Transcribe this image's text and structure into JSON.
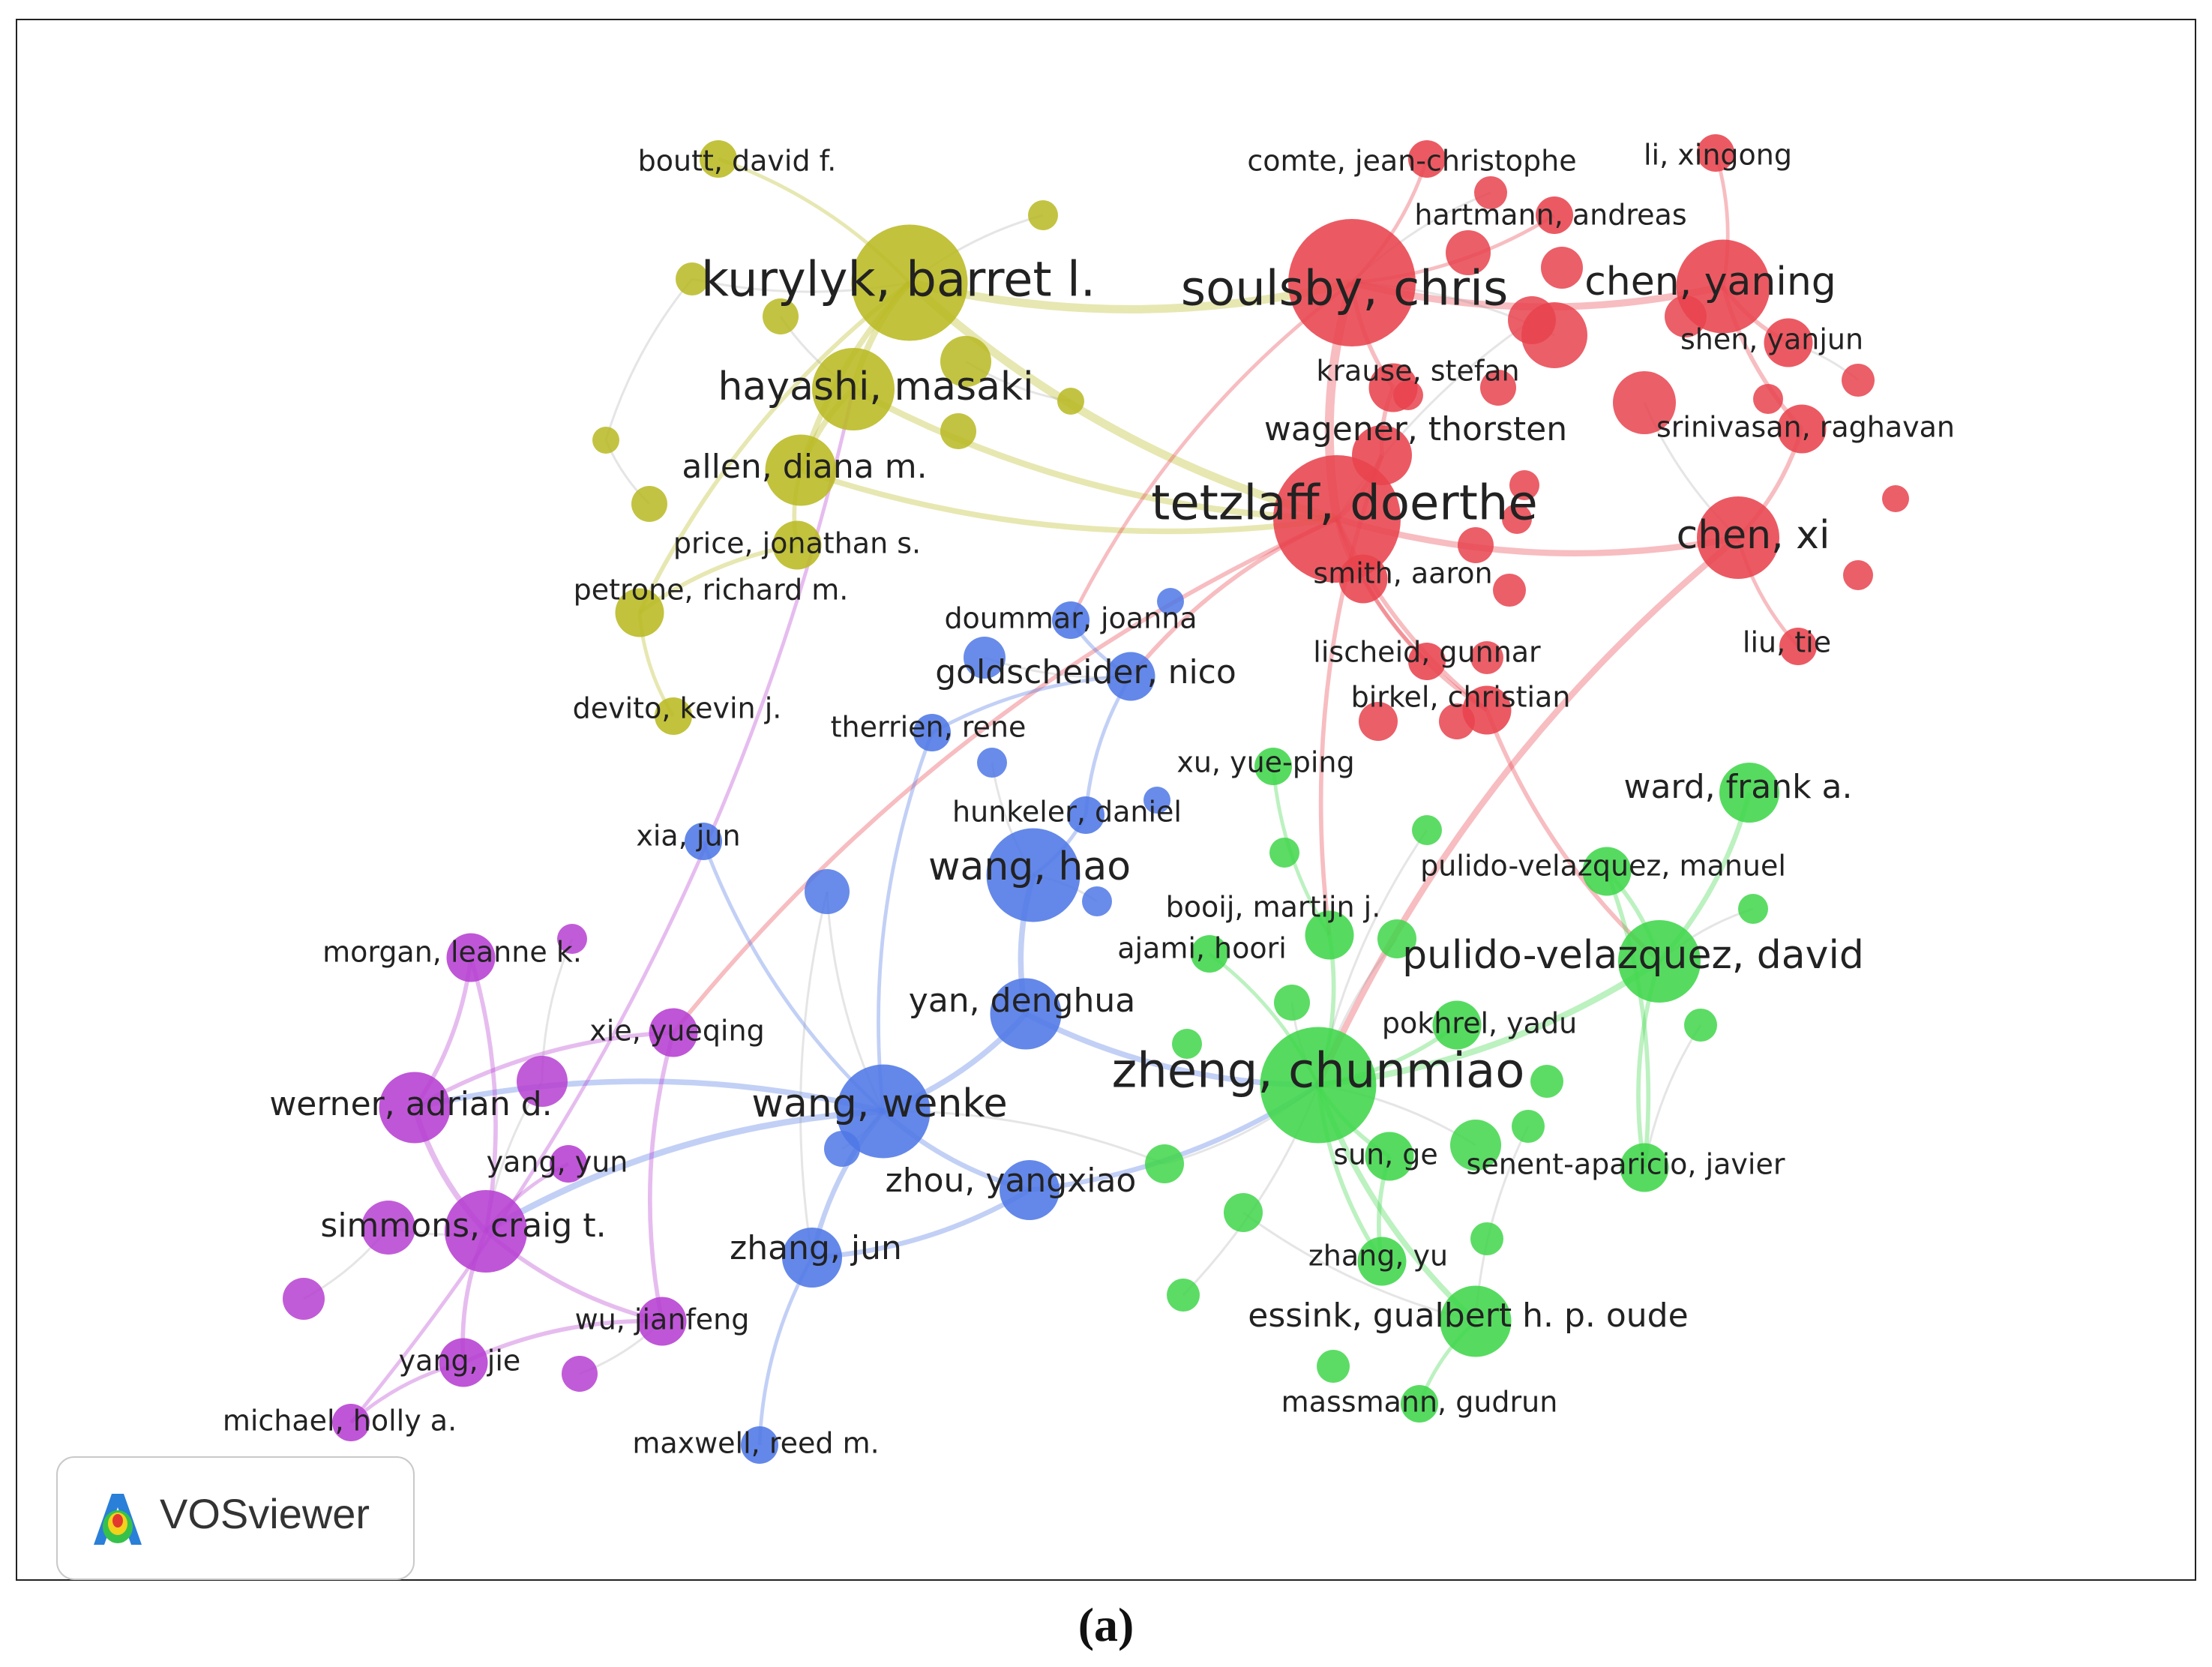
{
  "figure": {
    "caption": "(a)"
  },
  "legend": {
    "software": "VOSviewer"
  },
  "clusters": {
    "red": "#e8434d",
    "yellow": "#b9b922",
    "blue": "#4f78e6",
    "green": "#3fd64a",
    "purple": "#b63fd1"
  },
  "nodes": [
    {
      "id": "kurylyk",
      "label": "kurylyk, barret l.",
      "cluster": "yellow",
      "weight": 9,
      "label_size": "xl"
    },
    {
      "id": "hayashi",
      "label": "hayashi, masaki",
      "cluster": "yellow",
      "weight": 6,
      "label_size": "l"
    },
    {
      "id": "allen",
      "label": "allen, diana m.",
      "cluster": "yellow",
      "weight": 5,
      "label_size": "m"
    },
    {
      "id": "price",
      "label": "price, jonathan s.",
      "cluster": "yellow",
      "weight": 3,
      "label_size": "s"
    },
    {
      "id": "petrone",
      "label": "petrone, richard m.",
      "cluster": "yellow",
      "weight": 3,
      "label_size": "s"
    },
    {
      "id": "devito",
      "label": "devito, kevin j.",
      "cluster": "yellow",
      "weight": 2,
      "label_size": "s"
    },
    {
      "id": "boutt",
      "label": "boutt, david f.",
      "cluster": "yellow",
      "weight": 2,
      "label_size": "s"
    },
    {
      "id": "soulsby",
      "label": "soulsby, chris",
      "cluster": "red",
      "weight": 10,
      "label_size": "xl"
    },
    {
      "id": "tetzlaff",
      "label": "tetzlaff, doerthe",
      "cluster": "red",
      "weight": 10,
      "label_size": "xl"
    },
    {
      "id": "chen_yaning",
      "label": "chen, yaning",
      "cluster": "red",
      "weight": 7,
      "label_size": "l"
    },
    {
      "id": "chen_xi",
      "label": "chen, xi",
      "cluster": "red",
      "weight": 6,
      "label_size": "l"
    },
    {
      "id": "comte",
      "label": "comte, jean-christophe",
      "cluster": "red",
      "weight": 2,
      "label_size": "s"
    },
    {
      "id": "li_xingong",
      "label": "li, xingong",
      "cluster": "red",
      "weight": 2,
      "label_size": "s"
    },
    {
      "id": "hartmann",
      "label": "hartmann, andreas",
      "cluster": "red",
      "weight": 2,
      "label_size": "s"
    },
    {
      "id": "shen",
      "label": "shen, yanjun",
      "cluster": "red",
      "weight": 3,
      "label_size": "s"
    },
    {
      "id": "krause",
      "label": "krause, stefan",
      "cluster": "red",
      "weight": 3,
      "label_size": "s"
    },
    {
      "id": "wagener",
      "label": "wagener, thorsten",
      "cluster": "red",
      "weight": 4,
      "label_size": "m"
    },
    {
      "id": "srinivasan",
      "label": "srinivasan, raghavan",
      "cluster": "red",
      "weight": 3,
      "label_size": "s"
    },
    {
      "id": "smith",
      "label": "smith, aaron",
      "cluster": "red",
      "weight": 3,
      "label_size": "s"
    },
    {
      "id": "lischeid",
      "label": "lischeid, gunnar",
      "cluster": "red",
      "weight": 2,
      "label_size": "s"
    },
    {
      "id": "birkel",
      "label": "birkel, christian",
      "cluster": "red",
      "weight": 3,
      "label_size": "s"
    },
    {
      "id": "liu",
      "label": "liu, tie",
      "cluster": "red",
      "weight": 2,
      "label_size": "s"
    },
    {
      "id": "doummar",
      "label": "doummar, joanna",
      "cluster": "blue",
      "weight": 2,
      "label_size": "s"
    },
    {
      "id": "goldscheider",
      "label": "goldscheider, nico",
      "cluster": "blue",
      "weight": 3,
      "label_size": "m"
    },
    {
      "id": "therrien",
      "label": "therrien, rene",
      "cluster": "blue",
      "weight": 2,
      "label_size": "s"
    },
    {
      "id": "hunkeler",
      "label": "hunkeler, daniel",
      "cluster": "blue",
      "weight": 2,
      "label_size": "s"
    },
    {
      "id": "xia",
      "label": "xia, jun",
      "cluster": "blue",
      "weight": 2,
      "label_size": "s"
    },
    {
      "id": "wang_hao",
      "label": "wang, hao",
      "cluster": "blue",
      "weight": 7,
      "label_size": "l"
    },
    {
      "id": "yan",
      "label": "yan, denghua",
      "cluster": "blue",
      "weight": 5,
      "label_size": "m"
    },
    {
      "id": "wang_wenke",
      "label": "wang, wenke",
      "cluster": "blue",
      "weight": 7,
      "label_size": "l"
    },
    {
      "id": "zhou",
      "label": "zhou, yangxiao",
      "cluster": "blue",
      "weight": 4,
      "label_size": "m"
    },
    {
      "id": "zhang_jun",
      "label": "zhang, jun",
      "cluster": "blue",
      "weight": 4,
      "label_size": "m"
    },
    {
      "id": "maxwell",
      "label": "maxwell, reed m.",
      "cluster": "blue",
      "weight": 2,
      "label_size": "s"
    },
    {
      "id": "xu",
      "label": "xu, yue-ping",
      "cluster": "green",
      "weight": 2,
      "label_size": "s"
    },
    {
      "id": "ward",
      "label": "ward, frank a.",
      "cluster": "green",
      "weight": 4,
      "label_size": "m"
    },
    {
      "id": "pulido_manuel",
      "label": "pulido-velazquez, manuel",
      "cluster": "green",
      "weight": 3,
      "label_size": "s"
    },
    {
      "id": "booij",
      "label": "booij, martijn j.",
      "cluster": "green",
      "weight": 3,
      "label_size": "s"
    },
    {
      "id": "ajami",
      "label": "ajami, hoori",
      "cluster": "green",
      "weight": 2,
      "label_size": "s"
    },
    {
      "id": "pulido_david",
      "label": "pulido-velazquez, david",
      "cluster": "green",
      "weight": 6,
      "label_size": "l"
    },
    {
      "id": "pokhrel",
      "label": "pokhrel, yadu",
      "cluster": "green",
      "weight": 3,
      "label_size": "s"
    },
    {
      "id": "zheng",
      "label": "zheng, chunmiao",
      "cluster": "green",
      "weight": 9,
      "label_size": "xl"
    },
    {
      "id": "sun",
      "label": "sun, ge",
      "cluster": "green",
      "weight": 3,
      "label_size": "s"
    },
    {
      "id": "senent",
      "label": "senent-aparicio, javier",
      "cluster": "green",
      "weight": 3,
      "label_size": "s"
    },
    {
      "id": "zhang_yu",
      "label": "zhang, yu",
      "cluster": "green",
      "weight": 3,
      "label_size": "s"
    },
    {
      "id": "essink",
      "label": "essink, gualbert h. p. oude",
      "cluster": "green",
      "weight": 5,
      "label_size": "m"
    },
    {
      "id": "massmann",
      "label": "massmann, gudrun",
      "cluster": "green",
      "weight": 2,
      "label_size": "s"
    },
    {
      "id": "morgan",
      "label": "morgan, leanne k.",
      "cluster": "purple",
      "weight": 3,
      "label_size": "s"
    },
    {
      "id": "xie",
      "label": "xie, yueqing",
      "cluster": "purple",
      "weight": 3,
      "label_size": "s"
    },
    {
      "id": "werner",
      "label": "werner, adrian d.",
      "cluster": "purple",
      "weight": 5,
      "label_size": "m"
    },
    {
      "id": "yang_yun",
      "label": "yang, yun",
      "cluster": "purple",
      "weight": 2,
      "label_size": "s"
    },
    {
      "id": "simmons",
      "label": "simmons, craig t.",
      "cluster": "purple",
      "weight": 6,
      "label_size": "m"
    },
    {
      "id": "wu",
      "label": "wu, jianfeng",
      "cluster": "purple",
      "weight": 3,
      "label_size": "s"
    },
    {
      "id": "yang_jie",
      "label": "yang, jie",
      "cluster": "purple",
      "weight": 3,
      "label_size": "s"
    },
    {
      "id": "michael",
      "label": "michael, holly a.",
      "cluster": "purple",
      "weight": 2,
      "label_size": "s"
    }
  ],
  "links": [
    [
      "kurylyk",
      "hayashi"
    ],
    [
      "kurylyk",
      "allen"
    ],
    [
      "kurylyk",
      "boutt"
    ],
    [
      "hayashi",
      "allen"
    ],
    [
      "allen",
      "price"
    ],
    [
      "price",
      "petrone"
    ],
    [
      "petrone",
      "devito"
    ],
    [
      "kurylyk",
      "petrone"
    ],
    [
      "kurylyk",
      "soulsby"
    ],
    [
      "hayashi",
      "tetzlaff"
    ],
    [
      "allen",
      "tetzlaff"
    ],
    [
      "kurylyk",
      "tetzlaff"
    ],
    [
      "soulsby",
      "tetzlaff"
    ],
    [
      "soulsby",
      "krause"
    ],
    [
      "soulsby",
      "comte"
    ],
    [
      "soulsby",
      "hartmann"
    ],
    [
      "tetzlaff",
      "wagener"
    ],
    [
      "tetzlaff",
      "smith"
    ],
    [
      "tetzlaff",
      "birkel"
    ],
    [
      "tetzlaff",
      "lischeid"
    ],
    [
      "tetzlaff",
      "chen_xi"
    ],
    [
      "chen_yaning",
      "shen"
    ],
    [
      "chen_yaning",
      "li_xingong"
    ],
    [
      "chen_yaning",
      "srinivasan"
    ],
    [
      "chen_xi",
      "srinivasan"
    ],
    [
      "chen_xi",
      "liu"
    ],
    [
      "soulsby",
      "chen_yaning"
    ],
    [
      "krause",
      "wagener"
    ],
    [
      "smith",
      "birkel"
    ],
    [
      "tetzlaff",
      "goldscheider"
    ],
    [
      "soulsby",
      "doummar"
    ],
    [
      "tetzlaff",
      "xie"
    ],
    [
      "chen_xi",
      "zheng"
    ],
    [
      "birkel",
      "pulido_david"
    ],
    [
      "wagener",
      "booij"
    ],
    [
      "wang_hao",
      "yan"
    ],
    [
      "wang_hao",
      "hunkeler"
    ],
    [
      "wang_wenke",
      "zhou"
    ],
    [
      "wang_wenke",
      "zhang_jun"
    ],
    [
      "wang_wenke",
      "yan"
    ],
    [
      "goldscheider",
      "hunkeler"
    ],
    [
      "goldscheider",
      "therrien"
    ],
    [
      "doummar",
      "goldscheider"
    ],
    [
      "xia",
      "wang_wenke"
    ],
    [
      "zhang_jun",
      "maxwell"
    ],
    [
      "zhang_jun",
      "zhou"
    ],
    [
      "wang_wenke",
      "simmons"
    ],
    [
      "wang_wenke",
      "werner"
    ],
    [
      "zhou",
      "zheng"
    ],
    [
      "yan",
      "zheng"
    ],
    [
      "therrien",
      "wang_wenke"
    ],
    [
      "zheng",
      "pulido_david"
    ],
    [
      "zheng",
      "sun"
    ],
    [
      "zheng",
      "essink"
    ],
    [
      "zheng",
      "pokhrel"
    ],
    [
      "zheng",
      "booij"
    ],
    [
      "pulido_david",
      "pulido_manuel"
    ],
    [
      "pulido_david",
      "senent"
    ],
    [
      "pulido_david",
      "ward"
    ],
    [
      "sun",
      "zhang_yu"
    ],
    [
      "essink",
      "massmann"
    ],
    [
      "zheng",
      "ajami"
    ],
    [
      "xu",
      "booij"
    ],
    [
      "zheng",
      "zhang_yu"
    ],
    [
      "senent",
      "pulido_manuel"
    ],
    [
      "werner",
      "simmons"
    ],
    [
      "simmons",
      "yang_jie"
    ],
    [
      "simmons",
      "wu"
    ],
    [
      "werner",
      "morgan"
    ],
    [
      "xie",
      "werner"
    ],
    [
      "xie",
      "wu"
    ],
    [
      "yang_yun",
      "simmons"
    ],
    [
      "yang_jie",
      "michael"
    ],
    [
      "simmons",
      "morgan"
    ],
    [
      "wu",
      "yang_jie"
    ],
    [
      "michael",
      "hayashi"
    ]
  ]
}
